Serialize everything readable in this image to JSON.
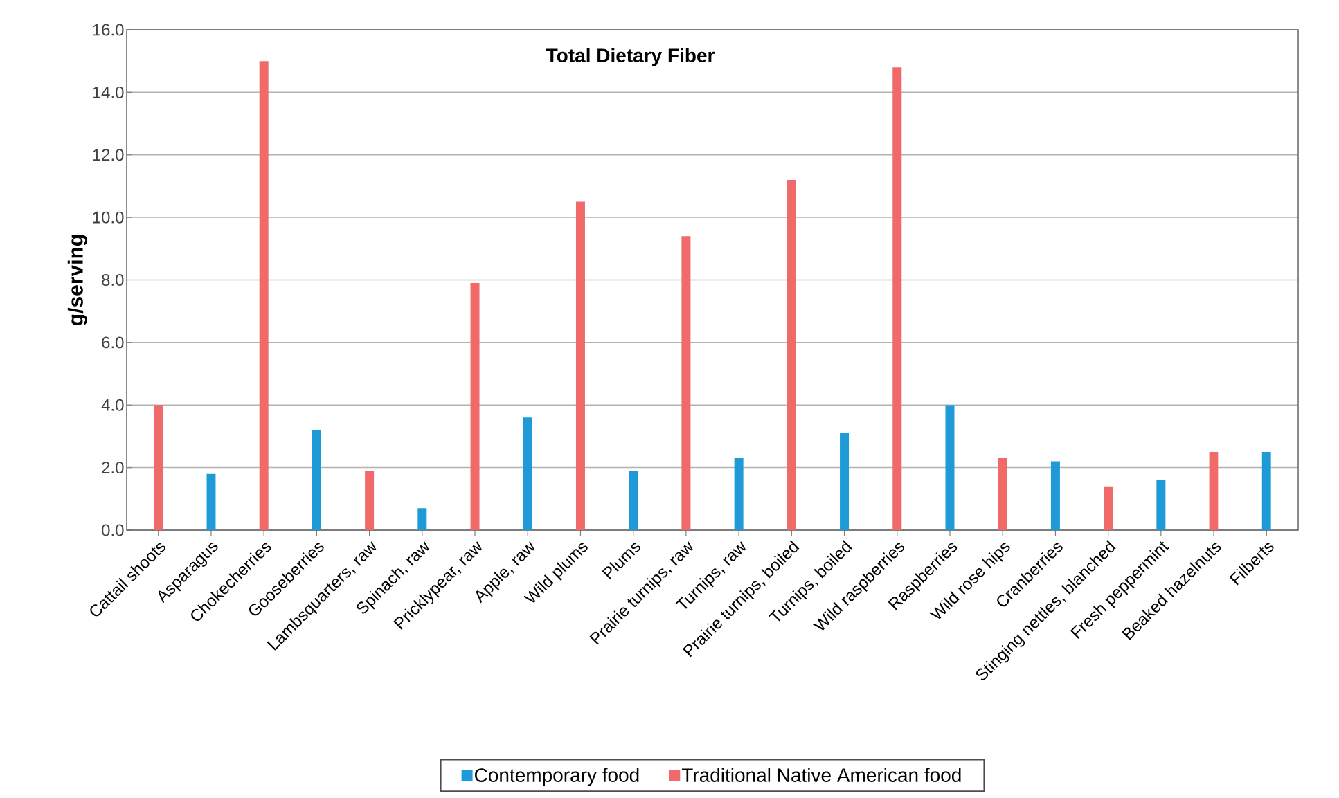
{
  "chart_data": {
    "type": "bar",
    "title": "Total Dietary Fiber",
    "ylabel": "g/serving",
    "categories": [
      "Cattail shoots",
      "Asparagus",
      "Chokecherries",
      "Gooseberries",
      "Lambsquarters, raw",
      "Spinach, raw",
      "Pricklypear, raw",
      "Apple, raw",
      "Wild plums",
      "Plums",
      "Prairie turnips, raw",
      "Turnips, raw",
      "Prairie turnips, boiled",
      "Turnips, boiled",
      "Wild raspberries",
      "Raspberries",
      "Wild rose hips",
      "Cranberries",
      "Stinging nettles, blanched",
      "Fresh peppermint",
      "Beaked hazelnuts",
      "Filberts"
    ],
    "series": [
      {
        "name": "Contemporary food",
        "color": "#1e9bd7",
        "values": [
          null,
          1.8,
          null,
          3.2,
          null,
          0.7,
          null,
          3.6,
          null,
          1.9,
          null,
          2.3,
          null,
          3.1,
          null,
          4.0,
          null,
          2.2,
          null,
          1.6,
          null,
          2.5
        ]
      },
      {
        "name": "Traditional Native American food",
        "color": "#f06a6a",
        "values": [
          4.0,
          null,
          15.0,
          null,
          1.9,
          null,
          7.9,
          null,
          10.5,
          null,
          9.4,
          null,
          11.2,
          null,
          14.8,
          null,
          2.3,
          null,
          1.4,
          null,
          2.5,
          null
        ]
      }
    ],
    "ylim": [
      0,
      16
    ],
    "yticks": [
      {
        "value": 0,
        "label": "0.0"
      },
      {
        "value": 2,
        "label": "2.0"
      },
      {
        "value": 4,
        "label": "4.0"
      },
      {
        "value": 6,
        "label": "6.0"
      },
      {
        "value": 8,
        "label": "8.0"
      },
      {
        "value": 10,
        "label": "10.0"
      },
      {
        "value": 12,
        "label": "12.0"
      },
      {
        "value": 14,
        "label": "14.0"
      },
      {
        "value": 16,
        "label": "16.0"
      }
    ],
    "grid": "y",
    "legend": "bottom"
  }
}
